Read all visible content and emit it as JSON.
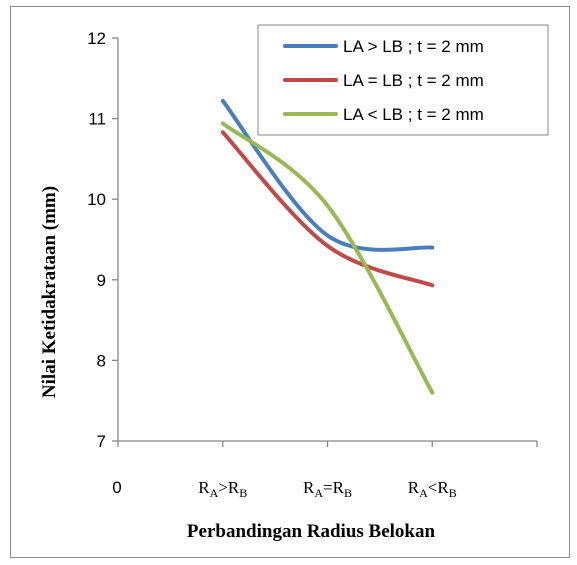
{
  "chart_data": {
    "type": "line",
    "title": "",
    "xlabel": "Perbandingan Radius Belokan",
    "ylabel": "Nilai Ketidakrataan (mm)",
    "ylim": [
      7,
      12
    ],
    "y_ticks": [
      7,
      8,
      9,
      10,
      11,
      12
    ],
    "x_origin_label": "0",
    "categories": [
      {
        "main": "R",
        "sub1": "A",
        "op": ">",
        "sub2": "B",
        "label": "RA>RB"
      },
      {
        "main": "R",
        "sub1": "A",
        "op": "=",
        "sub2": "B",
        "label": "RA=RB"
      },
      {
        "main": "R",
        "sub1": "A",
        "op": "<",
        "sub2": "B",
        "label": "RA<RB"
      }
    ],
    "grid": false,
    "legend_position": "top-right",
    "smooth": true,
    "series": [
      {
        "name": "LA > LB ; t = 2 mm",
        "values": [
          11.22,
          9.55,
          9.4
        ],
        "color": "#4a7ebb"
      },
      {
        "name": "LA = LB ; t = 2 mm",
        "values": [
          10.83,
          9.42,
          8.93
        ],
        "color": "#be4b48"
      },
      {
        "name": "LA < LB ; t = 2 mm",
        "values": [
          10.94,
          9.92,
          7.6
        ],
        "color": "#98b954"
      }
    ]
  }
}
